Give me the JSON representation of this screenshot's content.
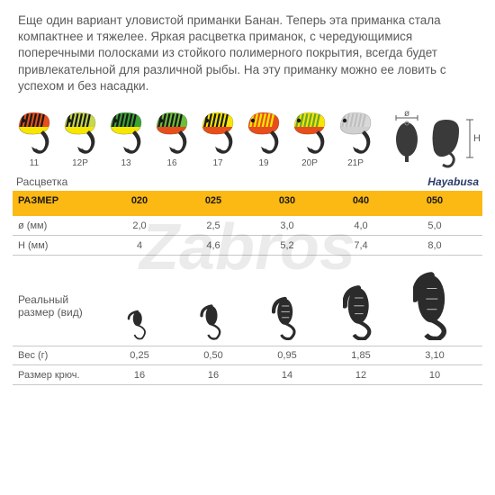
{
  "watermark": "Zabros",
  "description": "Еще один вариант уловистой приманки Банан. Теперь эта приманка стала компактнее и тяжелее.  Яркая расцветка приманок, с чередующимися поперечными полосками из стойкого полимерного покрытия, всегда будет привлекательной для различной рыбы. На эту приманку можно ее ловить с успехом и без насадки.",
  "lures": [
    {
      "label": "11",
      "body": "#e84e1b",
      "stripes": "#1a1a1a",
      "belly": "#f7e600"
    },
    {
      "label": "12P",
      "body": "#c5d94a",
      "stripes": "#1a1a1a",
      "belly": "#f7e600"
    },
    {
      "label": "13",
      "body": "#3aa535",
      "stripes": "#1a1a1a",
      "belly": "#f7e600"
    },
    {
      "label": "16",
      "body": "#6bbf3a",
      "stripes": "#1a1a1a",
      "belly": "#e84e1b"
    },
    {
      "label": "17",
      "body": "#f7e600",
      "stripes": "#1a1a1a",
      "belly": "#e84e1b"
    },
    {
      "label": "19",
      "body": "#e84e1b",
      "stripes": "#f7e600",
      "belly": "#e84e1b"
    },
    {
      "label": "20P",
      "body": "#f7e600",
      "stripes": "#69a52f",
      "belly": "#e84e1b"
    },
    {
      "label": "21P",
      "body": "#d9d9d9",
      "stripes": "#bfbfbf",
      "belly": "#d0d0d0"
    }
  ],
  "diagram": {
    "diameter_label": "ø",
    "height_label": "H",
    "fill": "#3a3a3a"
  },
  "rascvetka_label": "Расцветка",
  "brand": "Hayabusa",
  "sizes_table": {
    "header_label": "РАЗМЕР",
    "columns": [
      "020",
      "025",
      "030",
      "040",
      "050"
    ],
    "rows": [
      {
        "label": "ø (мм)",
        "values": [
          "2,0",
          "2,5",
          "3,0",
          "4,0",
          "5,0"
        ]
      },
      {
        "label": "H (мм)",
        "values": [
          "4",
          "4,6",
          "5,2",
          "7,4",
          "8,0"
        ]
      }
    ],
    "header_bg": "#fcb813"
  },
  "real_size": {
    "label_line1": "Реальный",
    "label_line2": "размер (вид)",
    "heights": [
      18,
      24,
      32,
      44,
      58
    ],
    "widths": [
      10,
      13,
      17,
      23,
      30
    ],
    "fill": "#2b2b2b"
  },
  "bottom_table": {
    "rows": [
      {
        "label": "Вес (г)",
        "values": [
          "0,25",
          "0,50",
          "0,95",
          "1,85",
          "3,10"
        ]
      },
      {
        "label": "Размер крюч.",
        "values": [
          "16",
          "16",
          "14",
          "12",
          "10"
        ]
      }
    ]
  },
  "colors": {
    "text": "#58595b",
    "divider": "#c8c8c8",
    "hook": "#2b2b2b"
  }
}
